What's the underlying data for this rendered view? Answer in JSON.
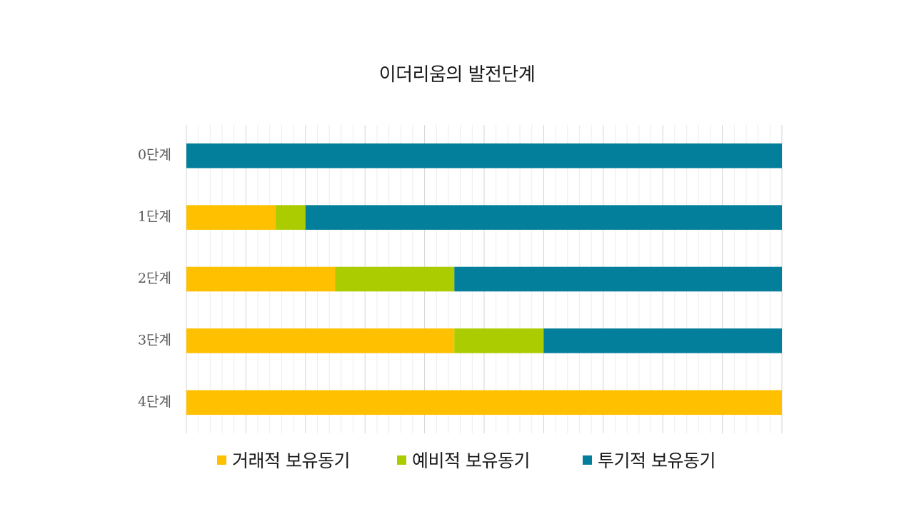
{
  "chart_data": {
    "type": "bar",
    "orientation": "horizontal",
    "stacked": true,
    "percent_stacked": true,
    "title": "이더리움의 발전단계",
    "categories": [
      "0단계",
      "1단계",
      "2단계",
      "3단계",
      "4단계"
    ],
    "series": [
      {
        "name": "거래적 보유동기",
        "color": "#FFC000",
        "values": [
          0,
          15,
          25,
          45,
          100
        ]
      },
      {
        "name": "예비적 보유동기",
        "color": "#AACC00",
        "values": [
          0,
          5,
          20,
          15,
          0
        ]
      },
      {
        "name": "투기적 보유동기",
        "color": "#037F9B",
        "values": [
          100,
          80,
          55,
          40,
          0
        ]
      }
    ],
    "xlim": [
      0,
      100
    ],
    "grid": true,
    "legend_position": "bottom"
  }
}
